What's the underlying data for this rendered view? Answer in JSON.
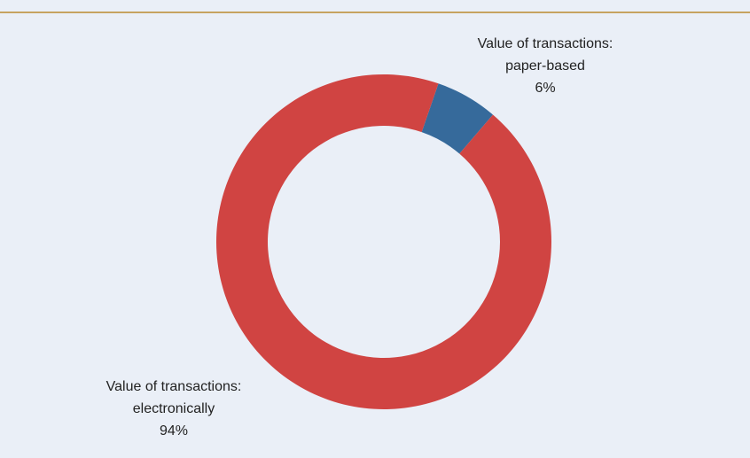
{
  "chart_data": {
    "type": "pie",
    "categories": [
      "Value of transactions: paper-based",
      "Value of transactions: electronically"
    ],
    "values": [
      6,
      94
    ],
    "value_labels": [
      "6%",
      "94%"
    ],
    "colors": [
      "#366a9b",
      "#d04442"
    ],
    "donut": true
  }
}
